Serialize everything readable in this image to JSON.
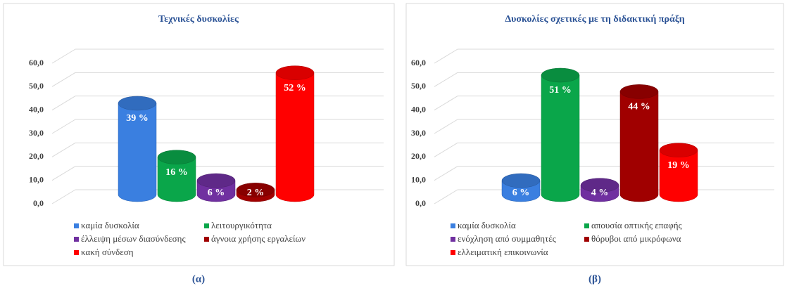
{
  "chart_data": [
    {
      "type": "bar3d",
      "title": "Τεχνικές δυσκολίες",
      "caption": "(α)",
      "categories": [
        "καμία δυσκολία",
        "λειτουργικότητα",
        "έλλειψη μέσων διασύνδεσης",
        "άγνοια χρήσης εργαλείων",
        "κακή σύνδεση"
      ],
      "values": [
        39,
        16,
        6,
        2,
        52
      ],
      "value_labels": [
        "39 %",
        "16 %",
        "6 %",
        "2 %",
        "52 %"
      ],
      "colors": [
        "#3a7fe0",
        "#0aa64a",
        "#7030a0",
        "#a00000",
        "#ff0000"
      ],
      "ylim": [
        0,
        60
      ],
      "yticks": [
        {
          "value": 0,
          "label": "0,0"
        },
        {
          "value": 10,
          "label": "10,0"
        },
        {
          "value": 20,
          "label": "20,0"
        },
        {
          "value": 30,
          "label": "30,0"
        },
        {
          "value": 40,
          "label": "40,0"
        },
        {
          "value": 50,
          "label": "50,0"
        },
        {
          "value": 60,
          "label": "60,0"
        }
      ],
      "grid": true
    },
    {
      "type": "bar3d",
      "title": "Δυσκολίες σχετικές με τη διδακτική πράξη",
      "caption": "(β)",
      "categories": [
        "καμία δυσκολία",
        "απουσία οπτικής επαφής",
        "ενόχληση από συμμαθητές",
        "θόρυβοι από μικρόφωνα",
        "ελλειματική επικοινωνία"
      ],
      "values": [
        6,
        51,
        4,
        44,
        19
      ],
      "value_labels": [
        "6 %",
        "51 %",
        "4 %",
        "44 %",
        "19 %"
      ],
      "colors": [
        "#3a7fe0",
        "#0aa64a",
        "#7030a0",
        "#a00000",
        "#ff0000"
      ],
      "ylim": [
        0,
        60
      ],
      "yticks": [
        {
          "value": 0,
          "label": "0,0"
        },
        {
          "value": 10,
          "label": "10,0"
        },
        {
          "value": 20,
          "label": "20,0"
        },
        {
          "value": 30,
          "label": "30,0"
        },
        {
          "value": 40,
          "label": "40,0"
        },
        {
          "value": 50,
          "label": "50,0"
        },
        {
          "value": 60,
          "label": "60,0"
        }
      ],
      "grid": true
    }
  ]
}
